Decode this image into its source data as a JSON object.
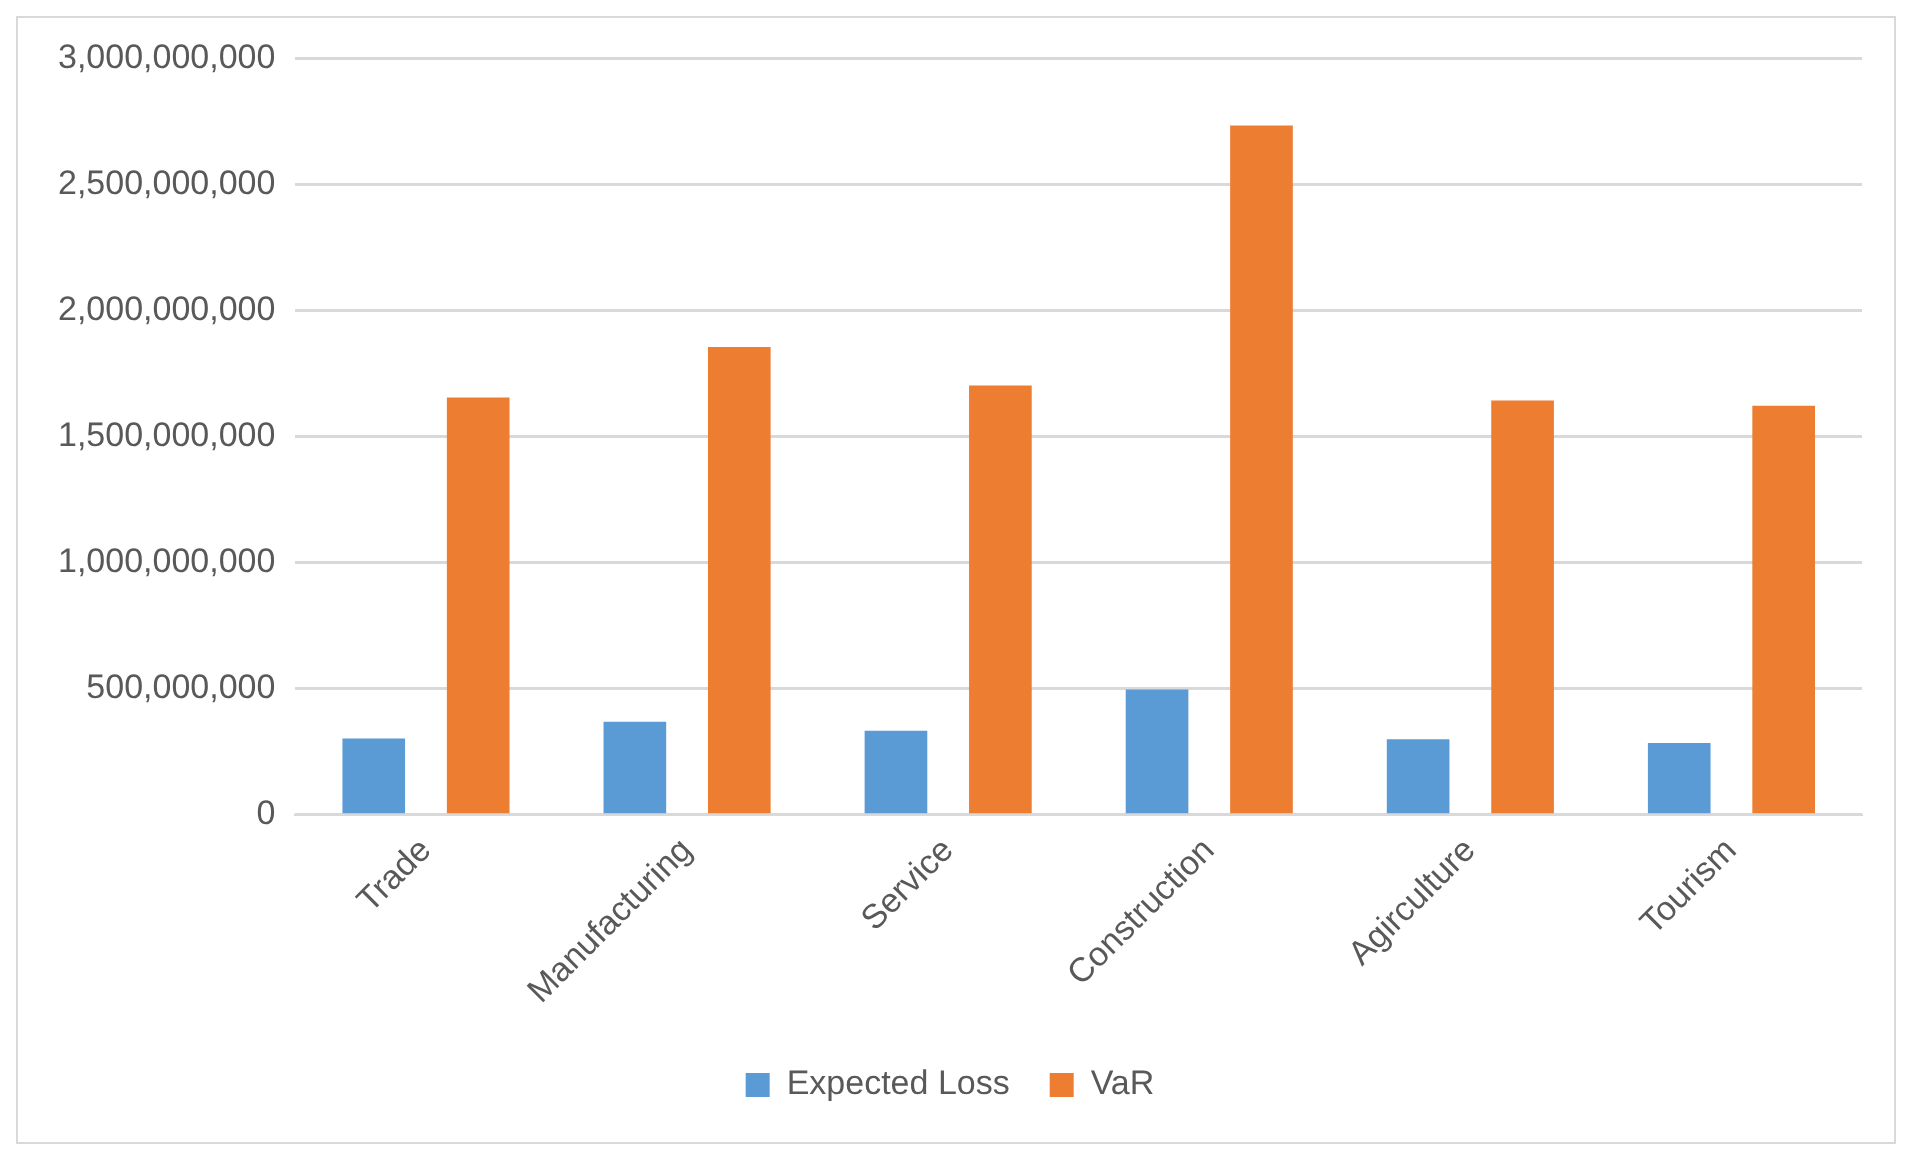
{
  "chart_data": {
    "type": "bar",
    "categories": [
      "Trade",
      "Manufacturing",
      "Service",
      "Construction",
      "Agirculture",
      "Tourism"
    ],
    "series": [
      {
        "name": "Expected Loss",
        "color": "#5b9bd5",
        "values": [
          303000000,
          369000000,
          333000000,
          497000000,
          300000000,
          285000000
        ]
      },
      {
        "name": "VaR",
        "color": "#ed7d31",
        "values": [
          1655000000,
          1855000000,
          1703000000,
          2734000000,
          1643000000,
          1622000000
        ]
      }
    ],
    "ylim": [
      0,
      3000000000
    ],
    "yticks": [
      0,
      {
        "value": 500000000,
        "label": "500,000,000"
      },
      {
        "value": 1000000000,
        "label": "1,000,000,000"
      },
      {
        "value": 1500000000,
        "label": "1,500,000,000"
      },
      {
        "value": 2000000000,
        "label": "2,000,000,000"
      },
      {
        "value": 2500000000,
        "label": "2,500,000,000"
      },
      {
        "value": 3000000000,
        "label": "3,000,000,000"
      }
    ],
    "grid": "y",
    "legend": "bottom"
  }
}
